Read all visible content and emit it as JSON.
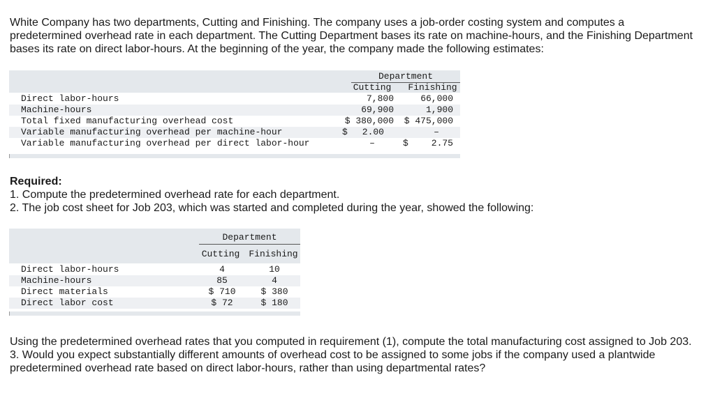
{
  "intro": "White Company has two departments, Cutting and Finishing. The company uses a job-order costing system and computes a predetermined overhead rate in each department. The Cutting Department bases its rate on machine-hours, and the Finishing Department bases its rate on direct labor-hours. At the beginning of the year, the company made the following estimates:",
  "table1": {
    "department_label": "Department",
    "col_cutting": "Cutting",
    "col_finishing": "Finishing",
    "rows": [
      {
        "label": "Direct labor-hours",
        "cutting": "7,800",
        "finishing": "66,000"
      },
      {
        "label": "Machine-hours",
        "cutting": "69,900",
        "finishing": "1,900"
      },
      {
        "label": "Total fixed manufacturing overhead cost",
        "cutting": "$ 380,000",
        "finishing": "$ 475,000"
      },
      {
        "label": "Variable manufacturing overhead per machine-hour",
        "cutting_symbol": "$",
        "cutting": "2.00",
        "finishing": "–"
      },
      {
        "label": "Variable manufacturing overhead per direct labor-hour",
        "cutting": "–",
        "finishing_symbol": "$",
        "finishing": "2.75"
      }
    ]
  },
  "required": {
    "heading": "Required:",
    "req1": "1. Compute the predetermined overhead rate for each department.",
    "req2": "2. The job cost sheet for Job 203, which was started and completed during the year, showed the following:"
  },
  "table2": {
    "department_label": "Department",
    "col_cutting": "Cutting",
    "col_finishing": "Finishing",
    "rows": [
      {
        "label": "Direct labor-hours",
        "cutting": "4",
        "finishing": "10"
      },
      {
        "label": "Machine-hours",
        "cutting": "85",
        "finishing": "4"
      },
      {
        "label": "Direct materials",
        "cutting": "$ 710",
        "finishing": "$ 380"
      },
      {
        "label": "Direct labor cost",
        "cutting": "$ 72",
        "finishing": "$ 180"
      }
    ]
  },
  "closing": {
    "line1": "Using the predetermined overhead rates that you computed in requirement (1), compute the total manufacturing cost assigned to Job 203.",
    "line2": "3. Would you expect substantially different amounts of overhead cost to be assigned to some jobs if the company used a plantwide predetermined overhead rate based on direct labor-hours, rather than using departmental rates?"
  }
}
